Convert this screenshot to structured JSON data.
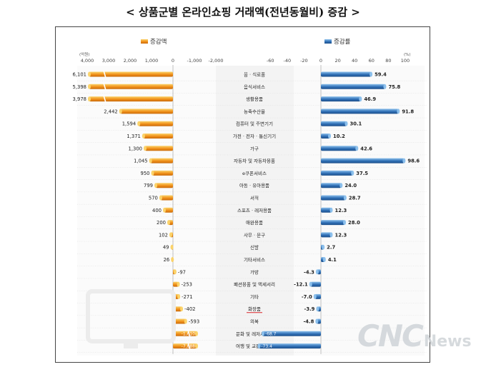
{
  "title": "< 상품군별 온라인쇼핑 거래액(전년동월비) 증감 >",
  "watermark": {
    "brand": "CNC",
    "suffix": "News"
  },
  "colors": {
    "amount_bar": "#f0901a",
    "amount_bar_light": "#fbd36a",
    "rate_bar": "#2f6fb5",
    "rate_bar_light": "#8cc0ec",
    "highlight_underline": "#d9242b"
  },
  "chart_data": [
    {
      "type": "bar",
      "orientation": "horizontal",
      "legend": "증감액",
      "unit_label": "(억원)",
      "xlim": [
        -2000,
        4000
      ],
      "ticks": [
        4000,
        3000,
        2000,
        1000,
        0,
        -1000,
        -2000
      ],
      "tick_labels": [
        "4,000",
        "3,000",
        "2,000",
        "1,000",
        "0",
        "-1,000",
        "-2,000"
      ],
      "axis_broken_for": [
        6101,
        5398,
        3978,
        -1610,
        -7888
      ],
      "categories": [
        "음 · 식료품",
        "음식서비스",
        "생활용품",
        "농축수산물",
        "컴퓨터 및 주변기기",
        "가전 · 전자 · 통신기기",
        "가구",
        "자동차 및 자동차용품",
        "e쿠폰서비스",
        "아동 · 유아용품",
        "서적",
        "스포츠 · 레저용품",
        "애완용품",
        "사무 · 문구",
        "신발",
        "기타서비스",
        "가방",
        "패션용품 및 액세서리",
        "기타",
        "화장품",
        "의복",
        "문화 및 레저서비스",
        "여행 및 교통서비스"
      ],
      "values": [
        6101,
        5398,
        3978,
        2442,
        1594,
        1371,
        1300,
        1045,
        950,
        799,
        570,
        400,
        200,
        102,
        49,
        26,
        -97,
        -253,
        -271,
        -402,
        -593,
        -1610,
        -7888
      ],
      "value_labels": [
        "6,101",
        "5,398",
        "3,978",
        "2,442",
        "1,594",
        "1,371",
        "1,300",
        "1,045",
        "950",
        "799",
        "570",
        "400",
        "200",
        "102",
        "49",
        "26",
        "-97",
        "-253",
        "-271",
        "-402",
        "-593",
        "-1,610",
        "-7,888"
      ],
      "highlighted_category": "화장품"
    },
    {
      "type": "bar",
      "orientation": "horizontal",
      "legend": "증감률",
      "unit_label": "(%)",
      "xlim": [
        -60,
        100
      ],
      "ticks": [
        -60,
        -40,
        -20,
        0,
        20,
        40,
        60,
        80,
        100
      ],
      "tick_labels": [
        "-60",
        "-40",
        "-20",
        "0",
        "20",
        "40",
        "60",
        "80",
        "100"
      ],
      "categories": [
        "음 · 식료품",
        "음식서비스",
        "생활용품",
        "농축수산물",
        "컴퓨터 및 주변기기",
        "가전 · 전자 · 통신기기",
        "가구",
        "자동차 및 자동차용품",
        "e쿠폰서비스",
        "아동 · 유아용품",
        "서적",
        "스포츠 · 레저용품",
        "애완용품",
        "사무 · 문구",
        "신발",
        "기타서비스",
        "가방",
        "패션용품 및 액세서리",
        "기타",
        "화장품",
        "의복",
        "문화 및 레저서비스",
        "여행 및 교통서비스"
      ],
      "values": [
        59.4,
        75.8,
        46.9,
        91.8,
        30.1,
        10.2,
        42.6,
        98.6,
        37.5,
        24.0,
        28.7,
        12.3,
        28.0,
        12.3,
        2.7,
        4.1,
        -4.3,
        -12.1,
        -7.0,
        -3.9,
        -4.8,
        -68.7,
        -73.4
      ],
      "value_labels": [
        "59.4",
        "75.8",
        "46.9",
        "91.8",
        "30.1",
        "10.2",
        "42.6",
        "98.6",
        "37.5",
        "24.0",
        "28.7",
        "12.3",
        "28.0",
        "12.3",
        "2.7",
        "4.1",
        "-4.3",
        "-12.1",
        "-7.0",
        "-3.9",
        "-4.8",
        "-68.7",
        "-73.4"
      ]
    }
  ]
}
